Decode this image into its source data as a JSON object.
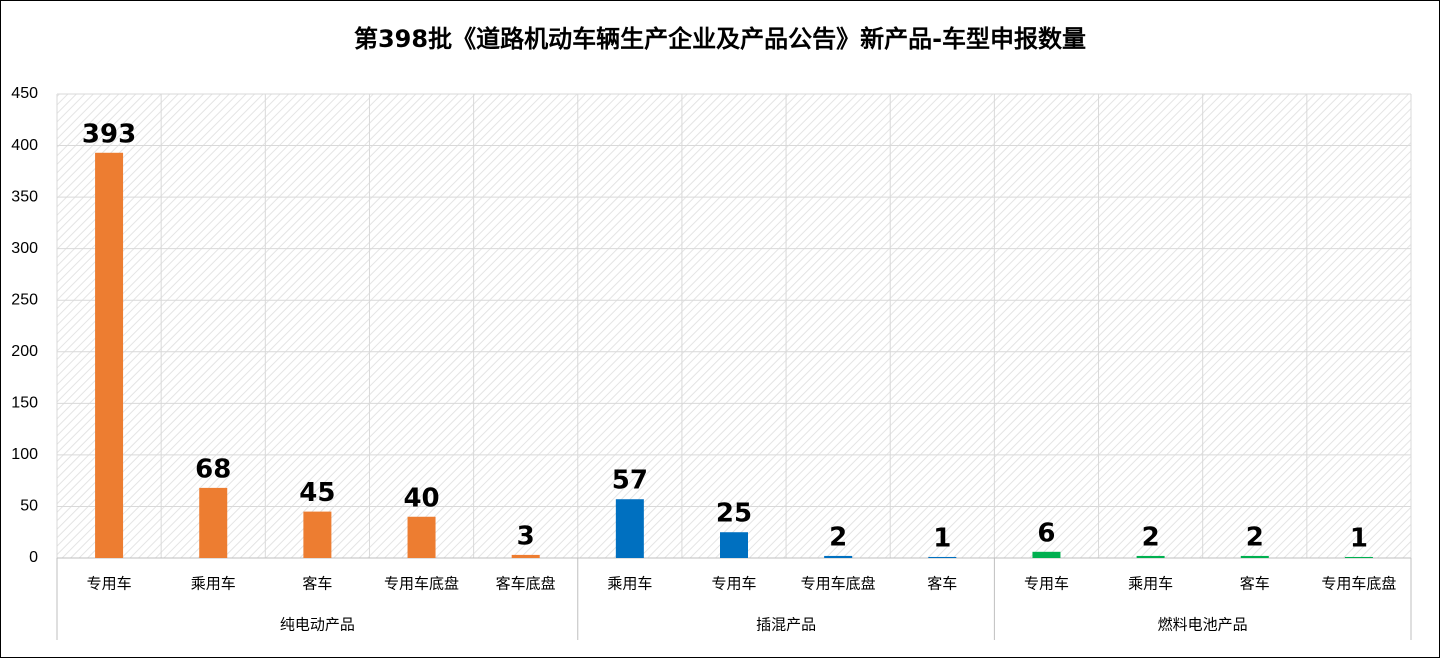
{
  "chart_data": {
    "type": "bar",
    "title": "第398批《道路机动车辆生产企业及产品公告》新产品-车型申报数量",
    "groups": [
      {
        "name": "纯电动产品",
        "color": "#ED7D31",
        "categories": [
          "专用车",
          "乘用车",
          "客车",
          "专用车底盘",
          "客车底盘"
        ],
        "values": [
          393,
          68,
          45,
          40,
          3
        ]
      },
      {
        "name": "插混产品",
        "color": "#0070C0",
        "categories": [
          "乘用车",
          "专用车",
          "专用车底盘",
          "客车"
        ],
        "values": [
          57,
          25,
          2,
          1
        ]
      },
      {
        "name": "燃料电池产品",
        "color": "#00B050",
        "categories": [
          "专用车",
          "乘用车",
          "客车",
          "专用车底盘"
        ],
        "values": [
          6,
          2,
          2,
          1
        ]
      }
    ],
    "ylim": [
      0,
      450
    ],
    "yticks": [
      0,
      50,
      100,
      150,
      200,
      250,
      300,
      350,
      400,
      450
    ],
    "grid": true
  }
}
